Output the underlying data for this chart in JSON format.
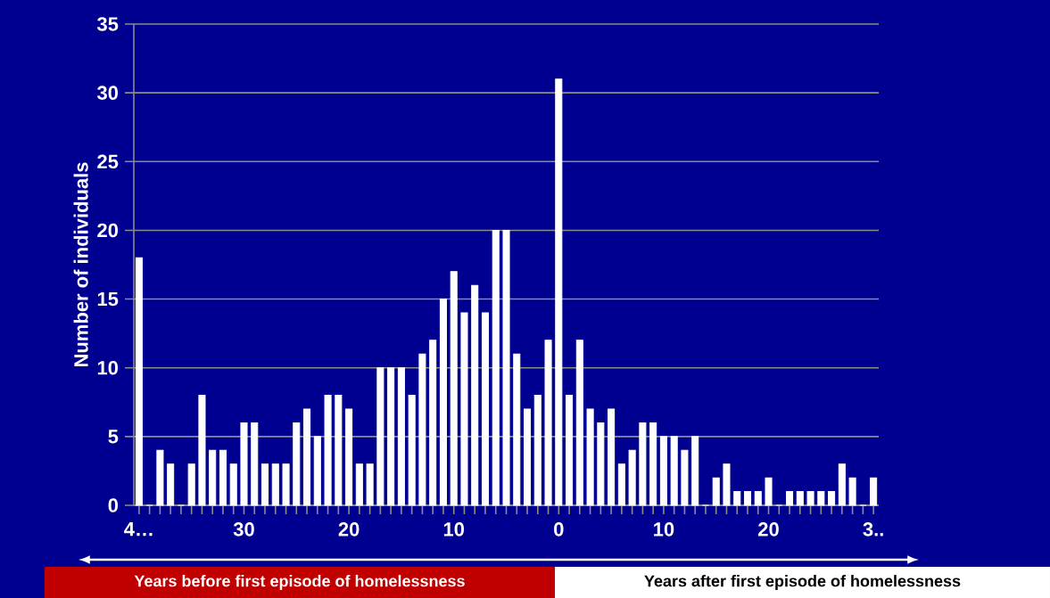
{
  "chart_data": {
    "type": "bar",
    "ylabel": "Number of individuals",
    "categories": [
      "4…",
      null,
      null,
      null,
      null,
      null,
      null,
      null,
      null,
      null,
      "30",
      null,
      null,
      null,
      null,
      null,
      null,
      null,
      null,
      null,
      "20",
      null,
      null,
      null,
      null,
      null,
      null,
      null,
      null,
      null,
      "10",
      null,
      null,
      null,
      null,
      null,
      null,
      null,
      null,
      null,
      "0",
      null,
      null,
      null,
      null,
      null,
      null,
      null,
      null,
      null,
      "10",
      null,
      null,
      null,
      null,
      null,
      null,
      null,
      null,
      null,
      "20",
      null,
      null,
      null,
      null,
      null,
      null,
      null,
      null,
      null,
      "3.."
    ],
    "values": [
      18,
      0,
      4,
      3,
      0,
      3,
      8,
      4,
      4,
      3,
      6,
      6,
      3,
      3,
      3,
      6,
      7,
      5,
      8,
      8,
      7,
      3,
      3,
      10,
      10,
      10,
      8,
      11,
      12,
      15,
      17,
      14,
      16,
      14,
      20,
      20,
      11,
      7,
      8,
      12,
      31,
      8,
      12,
      7,
      6,
      7,
      3,
      4,
      6,
      6,
      5,
      5,
      4,
      5,
      0,
      2,
      3,
      1,
      1,
      1,
      2,
      0,
      1,
      1,
      1,
      1,
      1,
      3,
      2,
      0,
      2
    ],
    "color": "#ffffff",
    "ylim": [
      0,
      35
    ],
    "yticks": [
      0,
      5,
      10,
      15,
      20,
      25,
      30,
      35
    ],
    "grid": "y",
    "annotations": [
      "Years before first episode of homelessness",
      "Years after first episode of homelessness"
    ]
  }
}
